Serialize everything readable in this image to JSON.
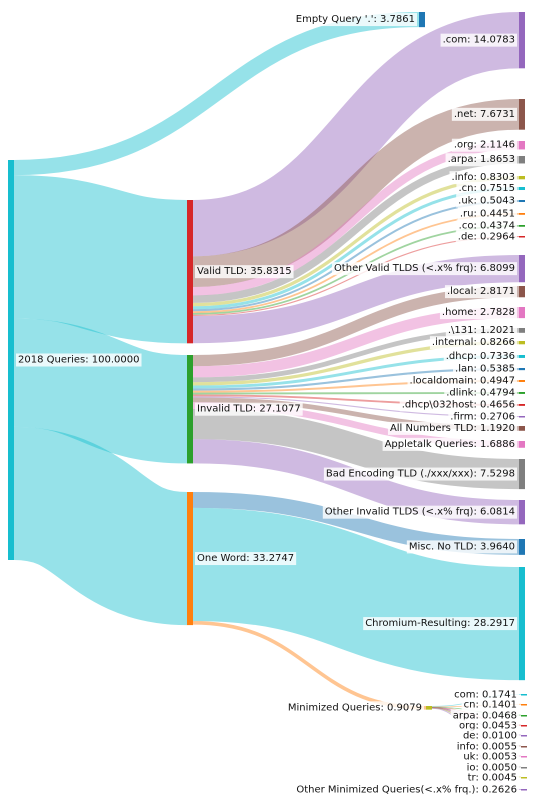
{
  "chart_data": {
    "type": "sankey",
    "title": "",
    "nodes": [
      {
        "id": "root",
        "label": "2018 Queries: 100.0000",
        "value": 100.0,
        "color": "#17becf"
      },
      {
        "id": "empty",
        "label": "Empty Query '.': 3.7861",
        "value": 3.7861,
        "color": "#1f77b4"
      },
      {
        "id": "valid",
        "label": "Valid TLD: 35.8315",
        "value": 35.8315,
        "color": "#d62728"
      },
      {
        "id": "invalid",
        "label": "Invalid TLD: 27.1077",
        "value": 27.1077,
        "color": "#2ca02c"
      },
      {
        "id": "oneword",
        "label": "One Word: 33.2747",
        "value": 33.2747,
        "color": "#ff7f0e"
      },
      {
        "id": "com",
        "label": ".com: 14.0783",
        "value": 14.0783,
        "color": "#9467bd"
      },
      {
        "id": "net",
        "label": ".net: 7.6731",
        "value": 7.6731,
        "color": "#8c564b"
      },
      {
        "id": "org",
        "label": ".org: 2.1146",
        "value": 2.1146,
        "color": "#e377c2"
      },
      {
        "id": "arpa",
        "label": ".arpa: 1.8653",
        "value": 1.8653,
        "color": "#7f7f7f"
      },
      {
        "id": "info",
        "label": ".info: 0.8303",
        "value": 0.8303,
        "color": "#bcbd22"
      },
      {
        "id": "cn",
        "label": ".cn: 0.7515",
        "value": 0.7515,
        "color": "#17becf"
      },
      {
        "id": "uk",
        "label": ".uk: 0.5043",
        "value": 0.5043,
        "color": "#1f77b4"
      },
      {
        "id": "ru",
        "label": ".ru: 0.4451",
        "value": 0.4451,
        "color": "#ff7f0e"
      },
      {
        "id": "co",
        "label": ".co: 0.4374",
        "value": 0.4374,
        "color": "#2ca02c"
      },
      {
        "id": "de",
        "label": ".de: 0.2964",
        "value": 0.2964,
        "color": "#d62728"
      },
      {
        "id": "othervalid",
        "label": "Other Valid TLDS (<.x% frq): 6.8099",
        "value": 6.8099,
        "color": "#9467bd"
      },
      {
        "id": "local",
        "label": ".local: 2.8171",
        "value": 2.8171,
        "color": "#8c564b"
      },
      {
        "id": "home",
        "label": ".home: 2.7828",
        "value": 2.7828,
        "color": "#e377c2"
      },
      {
        "id": "d131",
        "label": ".\\131: 1.2021",
        "value": 1.2021,
        "color": "#7f7f7f"
      },
      {
        "id": "internal",
        "label": ".internal: 0.8266",
        "value": 0.8266,
        "color": "#bcbd22"
      },
      {
        "id": "dhcp",
        "label": ".dhcp: 0.7336",
        "value": 0.7336,
        "color": "#17becf"
      },
      {
        "id": "lan",
        "label": ".lan: 0.5385",
        "value": 0.5385,
        "color": "#1f77b4"
      },
      {
        "id": "localdomain",
        "label": ".localdomain: 0.4947",
        "value": 0.4947,
        "color": "#ff7f0e"
      },
      {
        "id": "dlink",
        "label": ".dlink: 0.4794",
        "value": 0.4794,
        "color": "#2ca02c"
      },
      {
        "id": "dhcphost",
        "label": ".dhcp\\032host: 0.4656",
        "value": 0.4656,
        "color": "#d62728"
      },
      {
        "id": "firm",
        "label": ".firm: 0.2706",
        "value": 0.2706,
        "color": "#9467bd"
      },
      {
        "id": "allnum",
        "label": "All Numbers TLD: 1.1920",
        "value": 1.192,
        "color": "#8c564b"
      },
      {
        "id": "appletalk",
        "label": "Appletalk Queries: 1.6886",
        "value": 1.6886,
        "color": "#e377c2"
      },
      {
        "id": "badenc",
        "label": "Bad Encoding TLD (./xxx/xxx): 7.5298",
        "value": 7.5298,
        "color": "#7f7f7f"
      },
      {
        "id": "otherinvalid",
        "label": "Other Invalid TLDS (<.x% frq): 6.0814",
        "value": 6.0814,
        "color": "#9467bd"
      },
      {
        "id": "misc",
        "label": "Misc. No TLD: 3.9640",
        "value": 3.964,
        "color": "#1f77b4"
      },
      {
        "id": "chromium",
        "label": "Chromium-Resulting: 28.2917",
        "value": 28.2917,
        "color": "#17becf"
      },
      {
        "id": "minimized",
        "label": "Minimized Queries: 0.9079",
        "value": 0.9079,
        "color": "#bcbd22"
      },
      {
        "id": "mcom",
        "label": "com: 0.1741",
        "value": 0.1741,
        "color": "#17becf"
      },
      {
        "id": "mcn",
        "label": "cn: 0.1401",
        "value": 0.1401,
        "color": "#ff7f0e"
      },
      {
        "id": "marpa",
        "label": "arpa: 0.0468",
        "value": 0.0468,
        "color": "#2ca02c"
      },
      {
        "id": "morg",
        "label": "org: 0.0453",
        "value": 0.0453,
        "color": "#d62728"
      },
      {
        "id": "mde",
        "label": "de: 0.0100",
        "value": 0.01,
        "color": "#9467bd"
      },
      {
        "id": "minfo",
        "label": "info: 0.0055",
        "value": 0.0055,
        "color": "#8c564b"
      },
      {
        "id": "muk",
        "label": "uk: 0.0053",
        "value": 0.0053,
        "color": "#e377c2"
      },
      {
        "id": "mio",
        "label": "io: 0.0050",
        "value": 0.005,
        "color": "#7f7f7f"
      },
      {
        "id": "mtr",
        "label": "tr: 0.0045",
        "value": 0.0045,
        "color": "#bcbd22"
      },
      {
        "id": "mother",
        "label": "Other Minimized Queries(<.x% frq.): 0.2626",
        "value": 0.2626,
        "color": "#9467bd"
      }
    ],
    "links": [
      {
        "source": "root",
        "target": "empty",
        "value": 3.7861,
        "color": "#17becf"
      },
      {
        "source": "root",
        "target": "valid",
        "value": 35.8315,
        "color": "#17becf"
      },
      {
        "source": "root",
        "target": "invalid",
        "value": 27.1077,
        "color": "#17becf"
      },
      {
        "source": "root",
        "target": "oneword",
        "value": 33.2747,
        "color": "#17becf"
      },
      {
        "source": "valid",
        "target": "com",
        "value": 14.0783,
        "color": "#9467bd"
      },
      {
        "source": "valid",
        "target": "net",
        "value": 7.6731,
        "color": "#8c564b"
      },
      {
        "source": "valid",
        "target": "org",
        "value": 2.1146,
        "color": "#e377c2"
      },
      {
        "source": "valid",
        "target": "arpa",
        "value": 1.8653,
        "color": "#7f7f7f"
      },
      {
        "source": "valid",
        "target": "info",
        "value": 0.8303,
        "color": "#bcbd22"
      },
      {
        "source": "valid",
        "target": "cn",
        "value": 0.7515,
        "color": "#17becf"
      },
      {
        "source": "valid",
        "target": "uk",
        "value": 0.5043,
        "color": "#1f77b4"
      },
      {
        "source": "valid",
        "target": "ru",
        "value": 0.4451,
        "color": "#ff7f0e"
      },
      {
        "source": "valid",
        "target": "co",
        "value": 0.4374,
        "color": "#2ca02c"
      },
      {
        "source": "valid",
        "target": "de",
        "value": 0.2964,
        "color": "#d62728"
      },
      {
        "source": "valid",
        "target": "othervalid",
        "value": 6.8099,
        "color": "#9467bd"
      },
      {
        "source": "invalid",
        "target": "local",
        "value": 2.8171,
        "color": "#8c564b"
      },
      {
        "source": "invalid",
        "target": "home",
        "value": 2.7828,
        "color": "#e377c2"
      },
      {
        "source": "invalid",
        "target": "d131",
        "value": 1.2021,
        "color": "#7f7f7f"
      },
      {
        "source": "invalid",
        "target": "internal",
        "value": 0.8266,
        "color": "#bcbd22"
      },
      {
        "source": "invalid",
        "target": "dhcp",
        "value": 0.7336,
        "color": "#17becf"
      },
      {
        "source": "invalid",
        "target": "lan",
        "value": 0.5385,
        "color": "#1f77b4"
      },
      {
        "source": "invalid",
        "target": "localdomain",
        "value": 0.4947,
        "color": "#ff7f0e"
      },
      {
        "source": "invalid",
        "target": "dlink",
        "value": 0.4794,
        "color": "#2ca02c"
      },
      {
        "source": "invalid",
        "target": "dhcphost",
        "value": 0.4656,
        "color": "#d62728"
      },
      {
        "source": "invalid",
        "target": "firm",
        "value": 0.2706,
        "color": "#9467bd"
      },
      {
        "source": "invalid",
        "target": "allnum",
        "value": 1.192,
        "color": "#8c564b"
      },
      {
        "source": "invalid",
        "target": "appletalk",
        "value": 1.6886,
        "color": "#e377c2"
      },
      {
        "source": "invalid",
        "target": "badenc",
        "value": 7.5298,
        "color": "#7f7f7f"
      },
      {
        "source": "invalid",
        "target": "otherinvalid",
        "value": 6.0814,
        "color": "#9467bd"
      },
      {
        "source": "oneword",
        "target": "misc",
        "value": 3.964,
        "color": "#1f77b4"
      },
      {
        "source": "oneword",
        "target": "chromium",
        "value": 28.2917,
        "color": "#17becf"
      },
      {
        "source": "oneword",
        "target": "minimized",
        "value": 0.9079,
        "color": "#ff7f0e"
      },
      {
        "source": "minimized",
        "target": "mcom",
        "value": 0.1741,
        "color": "#17becf"
      },
      {
        "source": "minimized",
        "target": "mcn",
        "value": 0.1401,
        "color": "#ff7f0e"
      },
      {
        "source": "minimized",
        "target": "marpa",
        "value": 0.0468,
        "color": "#2ca02c"
      },
      {
        "source": "minimized",
        "target": "morg",
        "value": 0.0453,
        "color": "#d62728"
      },
      {
        "source": "minimized",
        "target": "mde",
        "value": 0.01,
        "color": "#9467bd"
      },
      {
        "source": "minimized",
        "target": "minfo",
        "value": 0.0055,
        "color": "#8c564b"
      },
      {
        "source": "minimized",
        "target": "muk",
        "value": 0.0053,
        "color": "#e377c2"
      },
      {
        "source": "minimized",
        "target": "mio",
        "value": 0.005,
        "color": "#7f7f7f"
      },
      {
        "source": "minimized",
        "target": "mtr",
        "value": 0.0045,
        "color": "#bcbd22"
      },
      {
        "source": "minimized",
        "target": "mother",
        "value": 0.2626,
        "color": "#9467bd"
      }
    ]
  }
}
